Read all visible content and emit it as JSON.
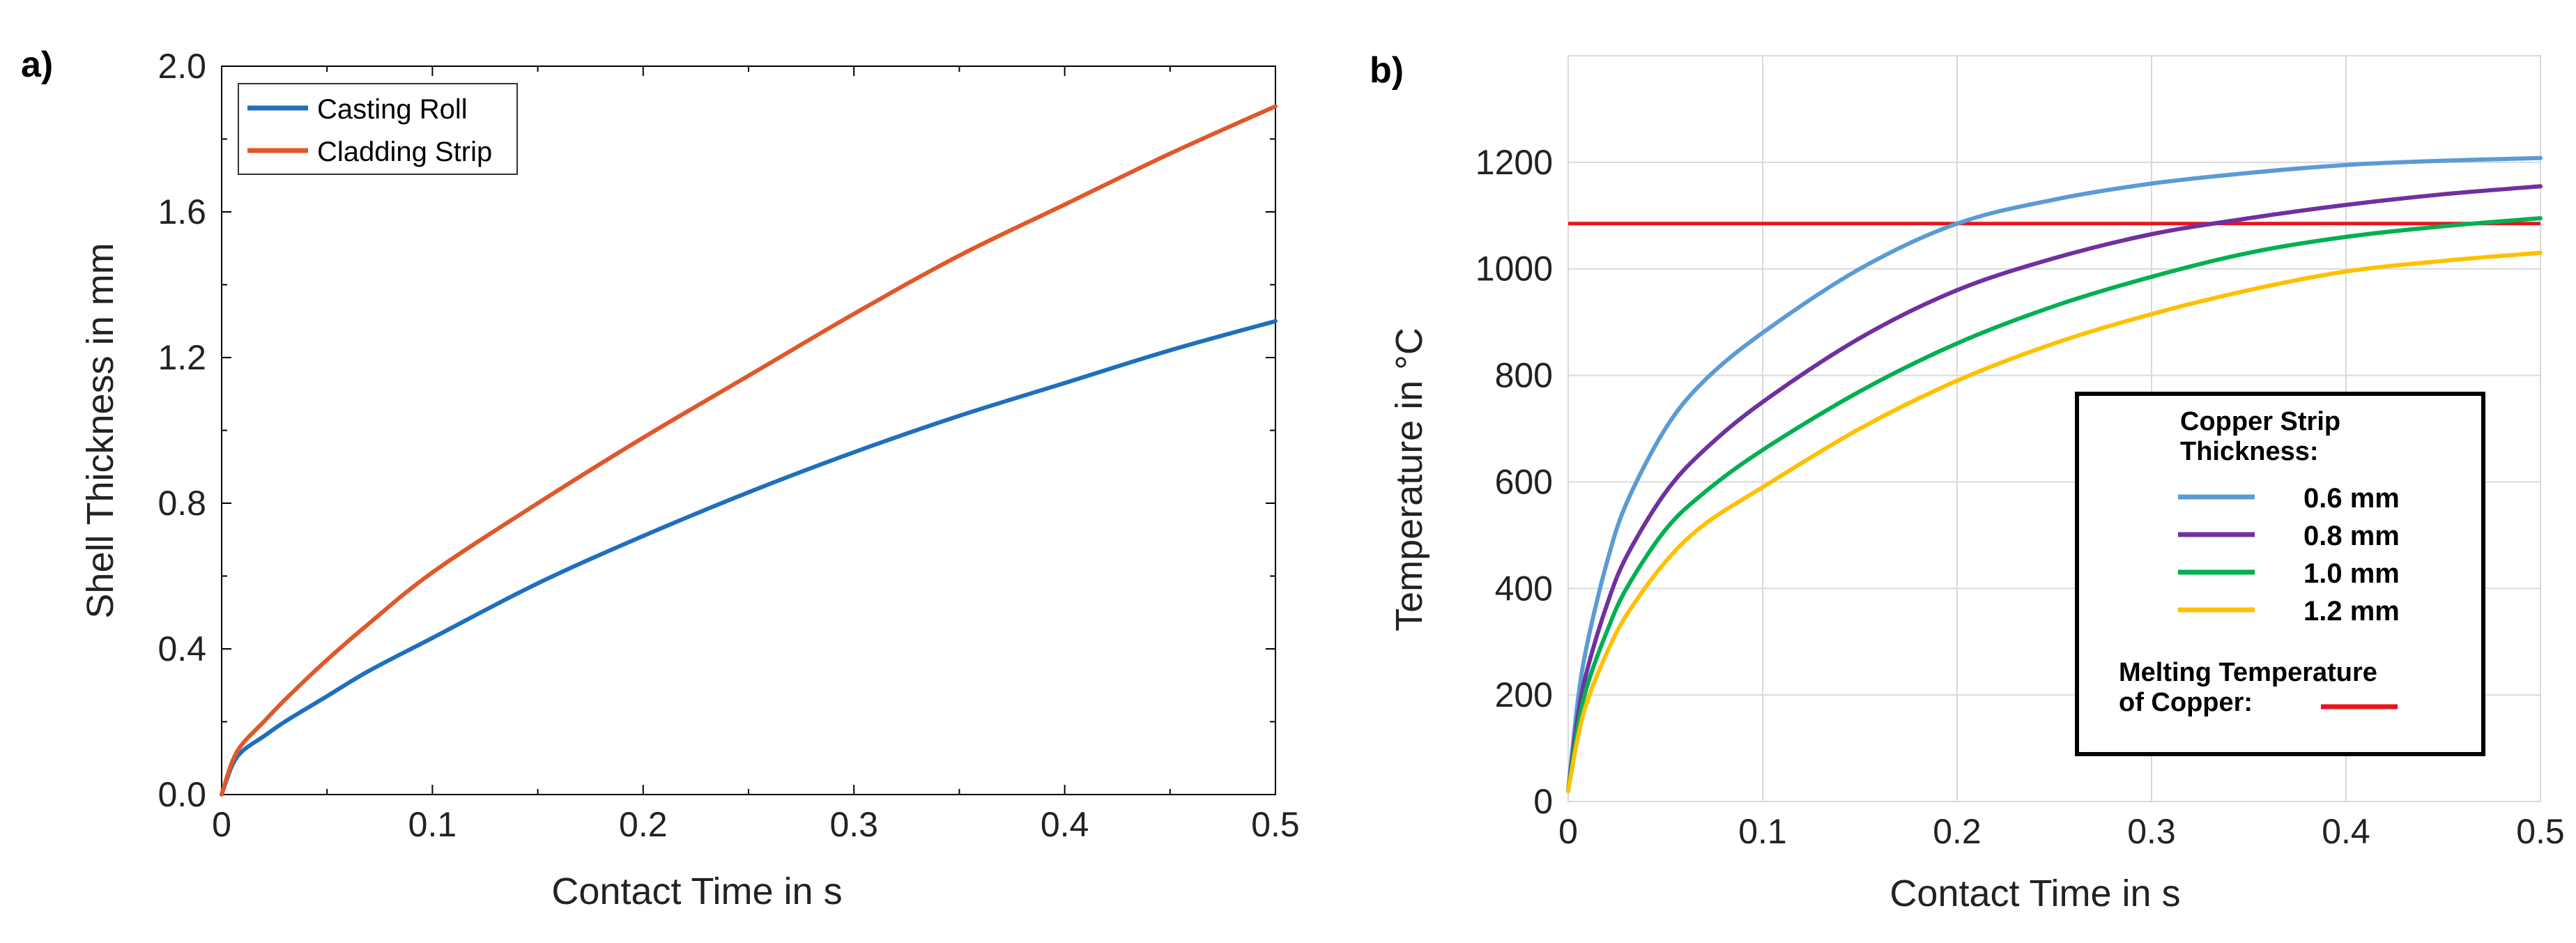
{
  "panels": {
    "a": {
      "label": "a)"
    },
    "b": {
      "label": "b)"
    }
  },
  "chart_data": [
    {
      "id": "a",
      "type": "line",
      "title": "",
      "xlabel": "Contact Time in s",
      "ylabel": "Shell Thickness in mm",
      "xlim": [
        0,
        0.5
      ],
      "ylim": [
        0,
        2.0
      ],
      "x_ticks": [
        "0",
        "0.1",
        "0.2",
        "0.3",
        "0.4",
        "0.5"
      ],
      "x_tick_values": [
        0,
        0.1,
        0.2,
        0.3,
        0.4,
        0.5
      ],
      "y_ticks": [
        "0.0",
        "0.4",
        "0.8",
        "1.2",
        "1.6",
        "2.0"
      ],
      "y_tick_values": [
        0,
        0.4,
        0.8,
        1.2,
        1.6,
        2.0
      ],
      "grid": false,
      "legend_position": "top-left",
      "series": [
        {
          "name": "Casting Roll",
          "color": "#1f6fbd",
          "x": [
            0,
            0.005,
            0.01,
            0.02,
            0.03,
            0.05,
            0.07,
            0.1,
            0.15,
            0.2,
            0.25,
            0.3,
            0.35,
            0.4,
            0.45,
            0.5
          ],
          "y": [
            0,
            0.08,
            0.12,
            0.16,
            0.2,
            0.27,
            0.34,
            0.43,
            0.58,
            0.71,
            0.83,
            0.94,
            1.04,
            1.13,
            1.22,
            1.3
          ]
        },
        {
          "name": "Cladding Strip",
          "color": "#e0582a",
          "x": [
            0,
            0.005,
            0.01,
            0.02,
            0.03,
            0.05,
            0.07,
            0.1,
            0.15,
            0.2,
            0.25,
            0.3,
            0.35,
            0.4,
            0.45,
            0.5
          ],
          "y": [
            0,
            0.09,
            0.14,
            0.2,
            0.26,
            0.37,
            0.47,
            0.61,
            0.8,
            0.98,
            1.15,
            1.32,
            1.48,
            1.62,
            1.76,
            1.89
          ]
        }
      ]
    },
    {
      "id": "b",
      "type": "line",
      "title": "",
      "xlabel": "Contact Time in s",
      "ylabel": "Temperature in °C",
      "xlim": [
        0,
        0.5
      ],
      "ylim": [
        0,
        1400
      ],
      "x_ticks": [
        "0",
        "0.1",
        "0.2",
        "0.3",
        "0.4",
        "0.5"
      ],
      "x_tick_values": [
        0,
        0.1,
        0.2,
        0.3,
        0.4,
        0.5
      ],
      "y_ticks": [
        "0",
        "200",
        "400",
        "600",
        "800",
        "1000",
        "1200"
      ],
      "y_tick_values": [
        0,
        200,
        400,
        600,
        800,
        1000,
        1200
      ],
      "grid": true,
      "legend_position": "right",
      "legend_title": "Copper Strip Thickness:",
      "legend_title_lines": [
        "Copper Strip",
        "Thickness:"
      ],
      "melting_label_lines": [
        "Melting Temperature",
        "of Copper:"
      ],
      "melting_temperature": {
        "name": "Melting Temperature of Copper",
        "value": 1085,
        "color": "#e8141b"
      },
      "series": [
        {
          "name": "0.6 mm",
          "color": "#5b9bd5",
          "x": [
            0,
            0.005,
            0.01,
            0.02,
            0.03,
            0.05,
            0.07,
            0.1,
            0.15,
            0.2,
            0.25,
            0.3,
            0.35,
            0.4,
            0.45,
            0.5
          ],
          "y": [
            20,
            190,
            300,
            450,
            560,
            700,
            790,
            880,
            1000,
            1085,
            1130,
            1160,
            1180,
            1195,
            1203,
            1208
          ]
        },
        {
          "name": "0.8 mm",
          "color": "#7030a0",
          "x": [
            0,
            0.005,
            0.01,
            0.02,
            0.03,
            0.05,
            0.07,
            0.1,
            0.15,
            0.2,
            0.25,
            0.3,
            0.35,
            0.4,
            0.45,
            0.5
          ],
          "y": [
            20,
            160,
            250,
            370,
            460,
            580,
            660,
            750,
            870,
            960,
            1020,
            1065,
            1095,
            1120,
            1140,
            1155
          ]
        },
        {
          "name": "1.0 mm",
          "color": "#00b050",
          "x": [
            0,
            0.005,
            0.01,
            0.02,
            0.03,
            0.05,
            0.07,
            0.1,
            0.15,
            0.2,
            0.25,
            0.3,
            0.35,
            0.4,
            0.45,
            0.5
          ],
          "y": [
            20,
            140,
            220,
            320,
            400,
            510,
            580,
            660,
            770,
            860,
            930,
            985,
            1030,
            1060,
            1080,
            1095
          ]
        },
        {
          "name": "1.2 mm",
          "color": "#ffc000",
          "x": [
            0,
            0.005,
            0.01,
            0.02,
            0.03,
            0.05,
            0.07,
            0.1,
            0.15,
            0.2,
            0.25,
            0.3,
            0.35,
            0.4,
            0.45,
            0.5
          ],
          "y": [
            20,
            120,
            190,
            280,
            350,
            450,
            520,
            590,
            700,
            790,
            860,
            915,
            960,
            995,
            1015,
            1030
          ]
        }
      ]
    }
  ]
}
